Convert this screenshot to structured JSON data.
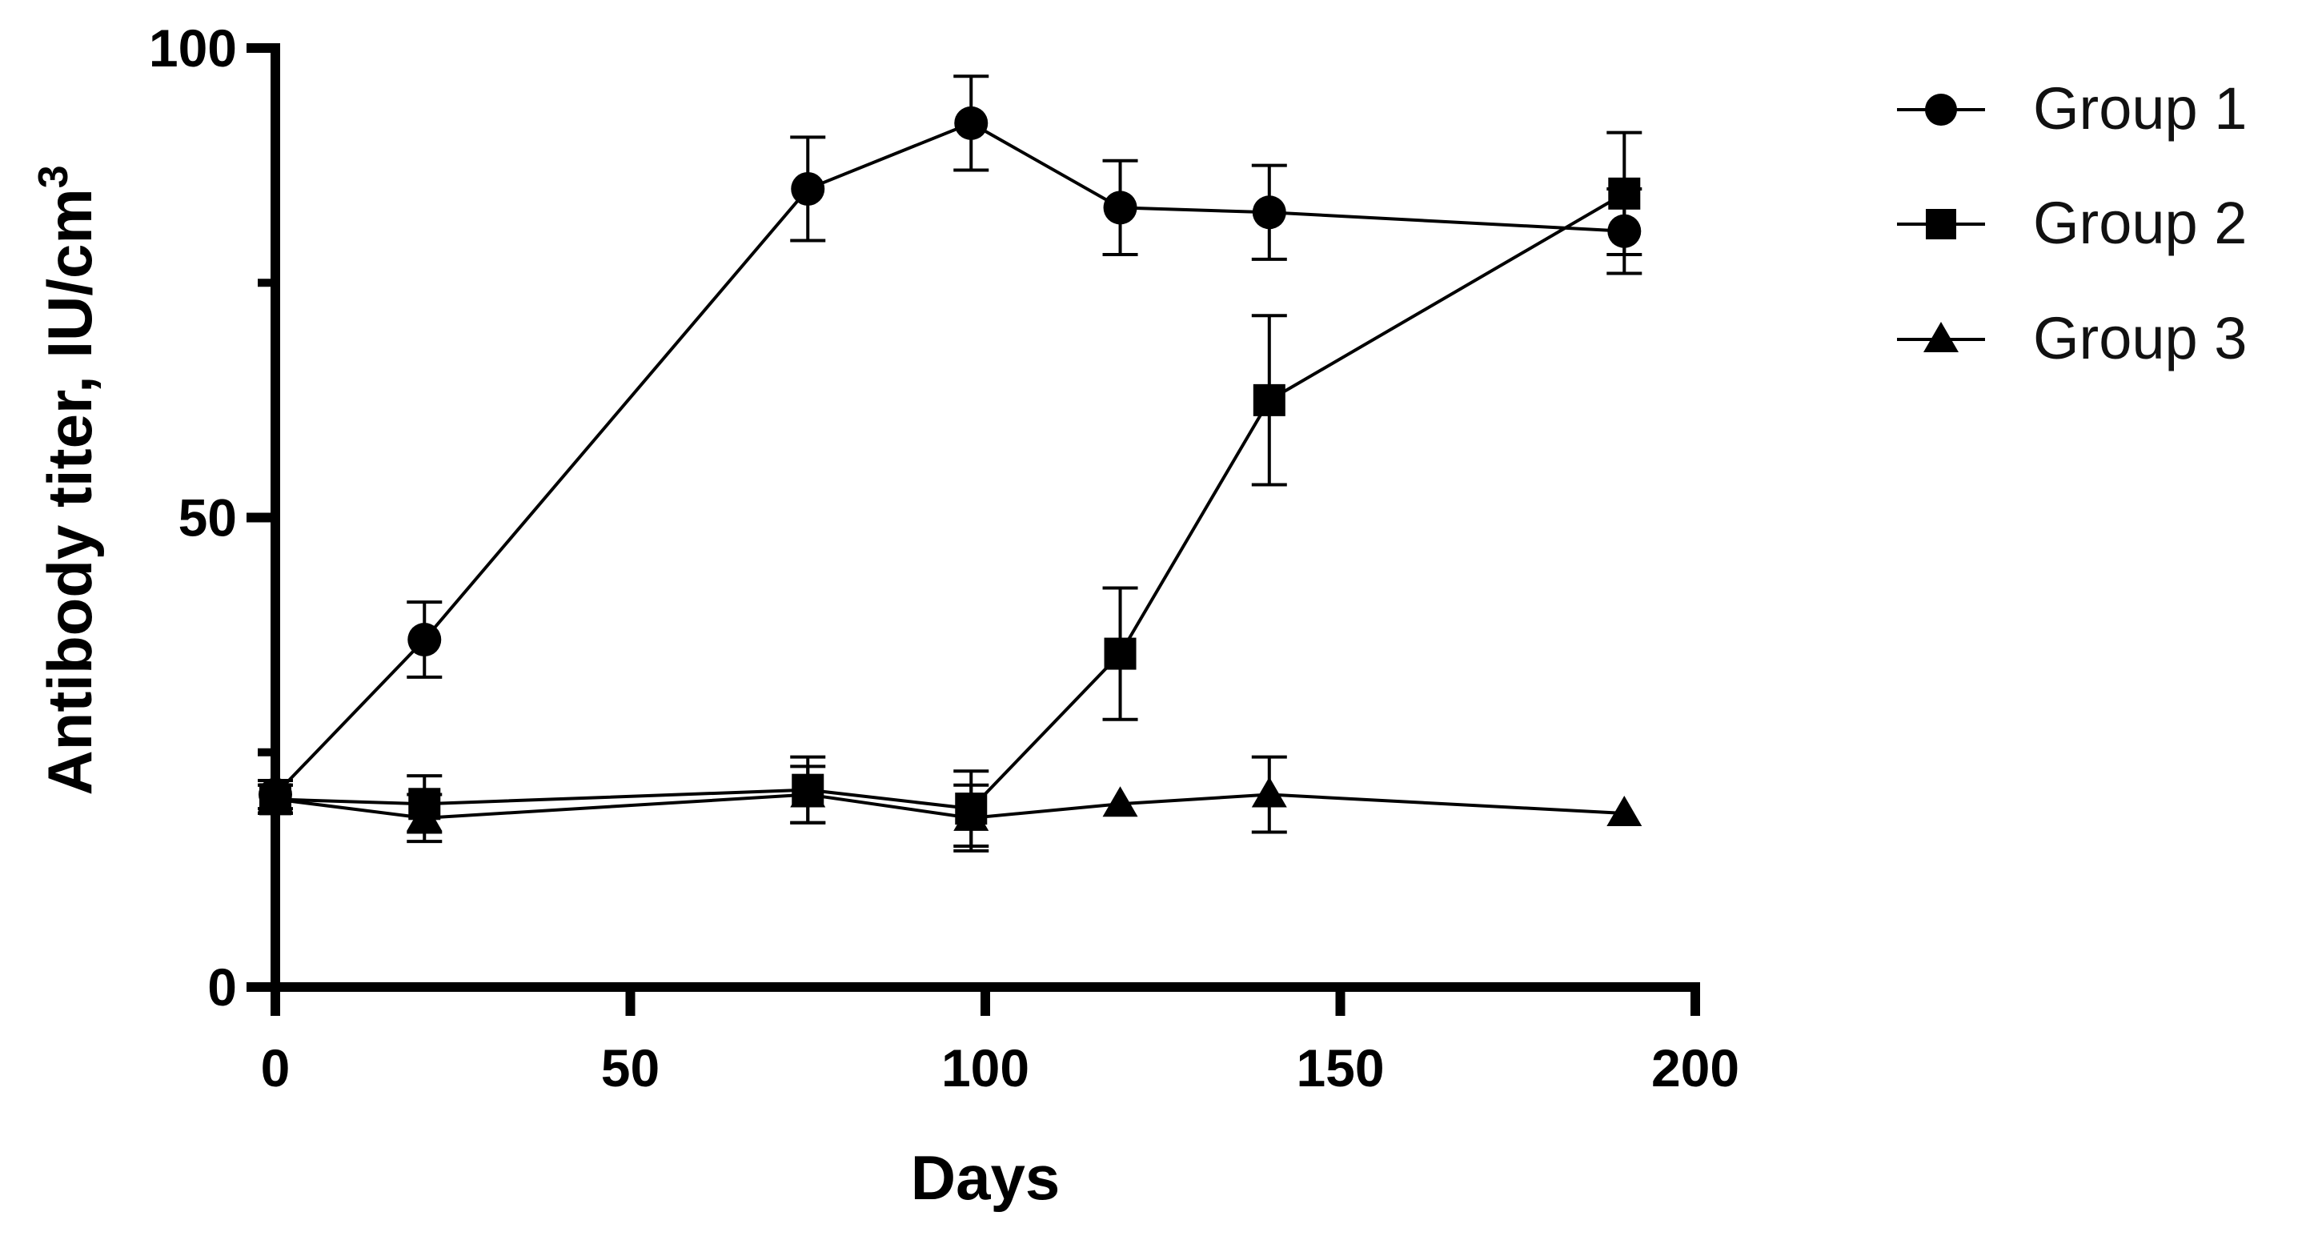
{
  "chart_data": {
    "type": "line",
    "title": "",
    "xlabel": "Days",
    "ylabel": "Antibody titer, IU/cm",
    "ylabel_superscript": "3",
    "xlim": [
      0,
      200
    ],
    "ylim": [
      0,
      100
    ],
    "x_ticks": [
      0,
      50,
      100,
      150,
      200
    ],
    "y_ticks": [
      0,
      50,
      100
    ],
    "x_tick_labels": [
      "0",
      "50",
      "100",
      "150",
      "200"
    ],
    "y_tick_labels": [
      "0",
      "50",
      "100"
    ],
    "y_minor_ticks": [
      25,
      75
    ],
    "grid": false,
    "legend_position": "top-right outside",
    "series": [
      {
        "name": "Group 1",
        "marker": "circle",
        "color": "#000000",
        "x": [
          0,
          21,
          75,
          98,
          119,
          140,
          190
        ],
        "y": [
          20.5,
          37,
          85,
          92,
          83,
          82.5,
          80.5
        ],
        "err": [
          1.5,
          4,
          5.5,
          5,
          5,
          5,
          4.5
        ]
      },
      {
        "name": "Group 2",
        "marker": "square",
        "color": "#000000",
        "x": [
          0,
          21,
          75,
          98,
          119,
          140,
          190
        ],
        "y": [
          20,
          19.5,
          21,
          19,
          35.5,
          62.5,
          84.5
        ],
        "err": [
          1.5,
          3,
          3.5,
          4,
          7,
          9,
          6.5
        ]
      },
      {
        "name": "Group 3",
        "marker": "triangle",
        "color": "#000000",
        "x": [
          0,
          21,
          75,
          98,
          119,
          140,
          190
        ],
        "y": [
          20,
          18,
          20.5,
          18,
          19.5,
          20.5,
          18.5
        ],
        "err": [
          1.5,
          2.5,
          3,
          3.5,
          0,
          4,
          0
        ]
      }
    ]
  }
}
